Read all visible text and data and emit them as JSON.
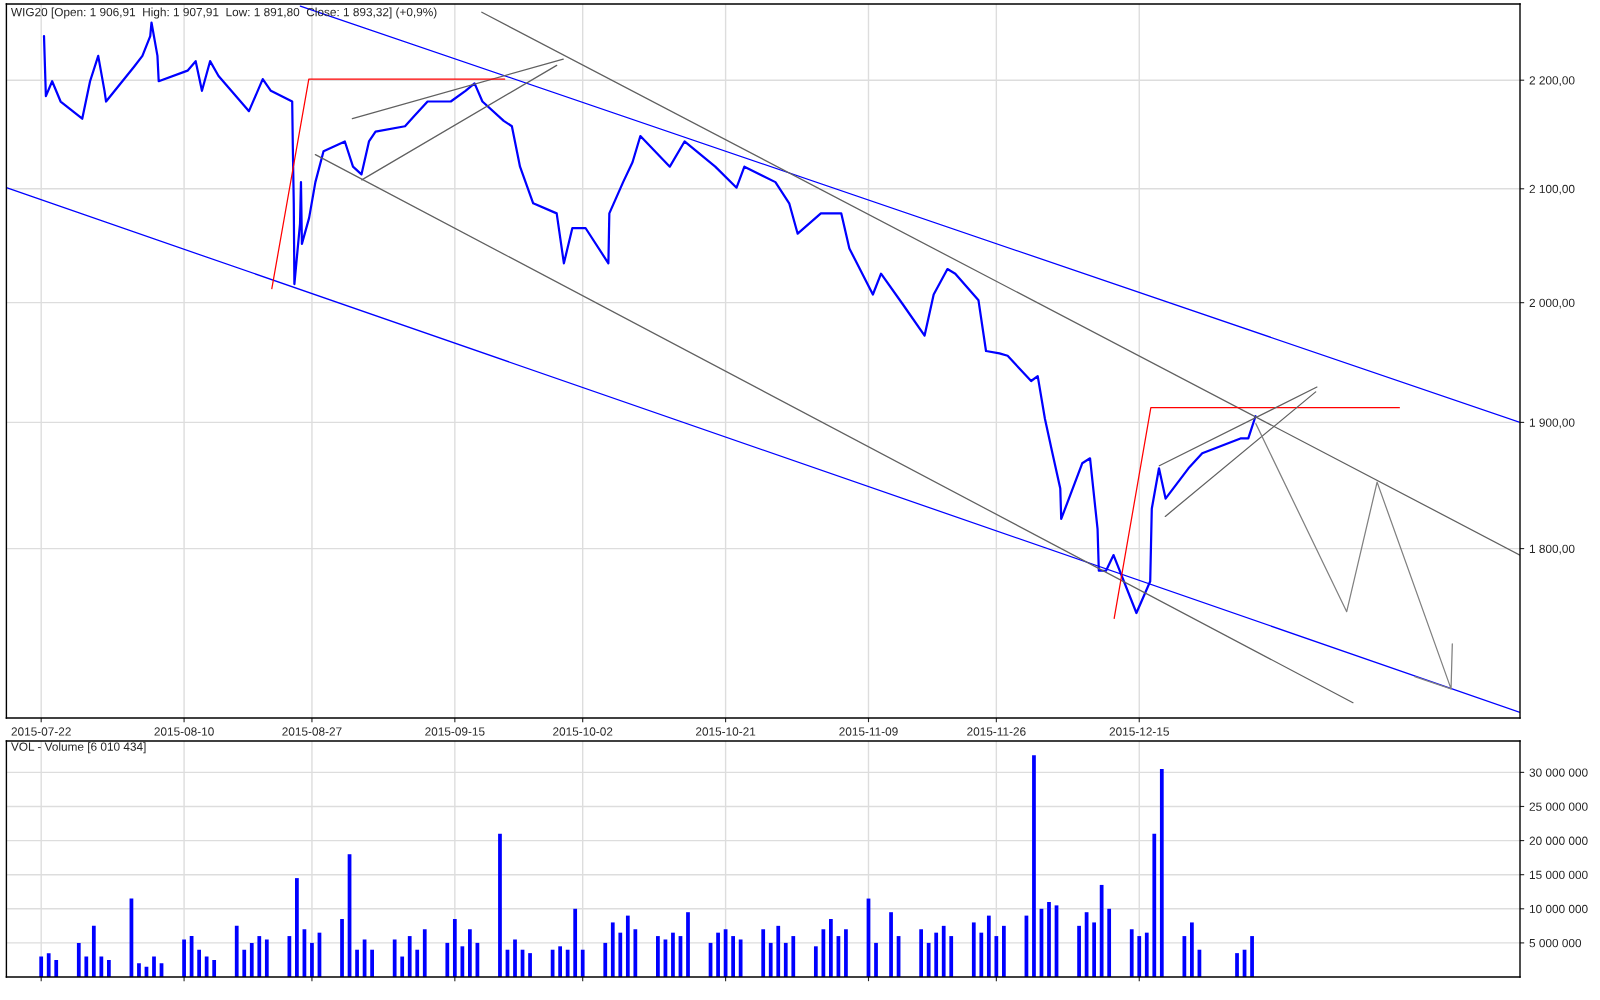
{
  "chart_data": [
    {
      "type": "line",
      "title": "WIG20 [Open: 1 906,91  High: 1 907,91  Low: 1 891,80  Close: 1 893,32] (+0,9%)",
      "log": "y",
      "grid": true,
      "xlim": [
        "2015-07-17T09:00",
        "2016-02-03T15:00"
      ],
      "ylim": [
        1674,
        2273
      ],
      "xticks": [
        "2015-07-22",
        "2015-08-10",
        "2015-08-27",
        "2015-09-15",
        "2015-10-02",
        "2015-10-21",
        "2015-11-09",
        "2015-11-26",
        "2015-12-15"
      ],
      "yticks": [
        {
          "value": 1800,
          "label": "1 800,00"
        },
        {
          "value": 1900,
          "label": "1 900,00"
        },
        {
          "value": 2000,
          "label": "2 000,00"
        },
        {
          "value": 2100,
          "label": "2 100,00"
        },
        {
          "value": 2200,
          "label": "2 200,00"
        }
      ],
      "series": [
        {
          "type": "line",
          "color": "#0000ff",
          "x": [
            "2015-07-22T09:00",
            "2015-07-22T15:00",
            "2015-07-23T11:00",
            "2015-07-24T14:00",
            "2015-07-27T11:00",
            "2015-07-28T12:00",
            "2015-07-29T14:00",
            "2015-07-30T10:00",
            "2015-07-30T15:00",
            "2015-08-03T09:00",
            "2015-08-04T11:00",
            "2015-08-05T12:00",
            "2015-08-05T16:00",
            "2015-08-06T11:00",
            "2015-08-06T15:00",
            "2015-08-10T11:00",
            "2015-08-11T13:00",
            "2015-08-12T09:00",
            "2015-08-13T11:00",
            "2015-08-14T14:00",
            "2015-08-18T09:00",
            "2015-08-18T15:00",
            "2015-08-20T11:00",
            "2015-08-21T13:00",
            "2015-08-24T09:00",
            "2015-08-24T11:00",
            "2015-08-24T14:00",
            "2015-08-24T16:00",
            "2015-08-25T10:00",
            "2015-08-25T13:00",
            "2015-08-25T16:00",
            "2015-08-26T15:00",
            "2015-08-27T11:00",
            "2015-08-28T13:00",
            "2015-08-31T09:00",
            "2015-09-01T11:00",
            "2015-09-02T14:00",
            "2015-09-03T14:00",
            "2015-09-04T11:00",
            "2015-09-08T09:00",
            "2015-09-09T13:00",
            "2015-09-11T09:00",
            "2015-09-14T11:00",
            "2015-09-16T10:00",
            "2015-09-17T15:00",
            "2015-09-18T16:00",
            "2015-09-21T12:00",
            "2015-09-22T14:00",
            "2015-09-23T16:00",
            "2015-09-25T10:00",
            "2015-09-28T13:00",
            "2015-09-29T12:00",
            "2015-09-30T15:00",
            "2015-10-02T09:00",
            "2015-10-05T10:00",
            "2015-10-05T13:00",
            "2015-10-07T09:00",
            "2015-10-08T15:00",
            "2015-10-09T16:00",
            "2015-10-13T14:00",
            "2015-10-15T13:00",
            "2015-10-19T15:00",
            "2015-10-22T11:00",
            "2015-10-23T12:00",
            "2015-10-27T15:00",
            "2015-10-29T11:00",
            "2015-10-30T14:00",
            "2015-11-02T16:00",
            "2015-11-05T09:00",
            "2015-11-06T11:00",
            "2015-11-09T14:00",
            "2015-11-10T16:00",
            "2015-11-13T15:00",
            "2015-11-16T11:00",
            "2015-11-17T16:00",
            "2015-11-19T12:00",
            "2015-11-20T13:00",
            "2015-11-23T15:00",
            "2015-11-24T15:00",
            "2015-11-26T10:00",
            "2015-11-27T12:00",
            "2015-11-30T15:00",
            "2015-12-01T12:00",
            "2015-12-02T11:00",
            "2015-12-03T11:00",
            "2015-12-04T12:00",
            "2015-12-04T15:00",
            "2015-12-07T10:00",
            "2015-12-08T11:00",
            "2015-12-09T11:00",
            "2015-12-09T15:00",
            "2015-12-10T14:00",
            "2015-12-11T14:00",
            "2015-12-14T15:00",
            "2015-12-16T11:00",
            "2015-12-16T16:00",
            "2015-12-17T15:00",
            "2015-12-18T12:00",
            "2015-12-21T13:00",
            "2015-12-23T09:00",
            "2015-12-28T11:00",
            "2015-12-29T12:00",
            "2015-12-30T11:00"
          ],
          "values": [
            2242,
            2185,
            2199,
            2180,
            2164,
            2199,
            2223,
            2190,
            2180,
            2213,
            2223,
            2242,
            2255,
            2223,
            2199,
            2209,
            2218,
            2190,
            2218,
            2204,
            2173,
            2171,
            2201,
            2190,
            2180,
            2138,
            2087,
            2016,
            2069,
            2106,
            2051,
            2074,
            2106,
            2134,
            2143,
            2120,
            2113,
            2143,
            2152,
            2157,
            2166,
            2180,
            2180,
            2190,
            2197,
            2180,
            2162,
            2157,
            2120,
            2087,
            2078,
            2034,
            2065,
            2065,
            2034,
            2078,
            2106,
            2124,
            2148,
            2120,
            2143,
            2120,
            2101,
            2120,
            2106,
            2087,
            2060,
            2078,
            2078,
            2047,
            2007,
            2025,
            1998,
            1972,
            2007,
            2029,
            2025,
            2002,
            1959,
            1957,
            1955,
            1934,
            1938,
            1903,
            1875,
            1847,
            1823,
            1867,
            1871,
            1815,
            1783,
            1783,
            1795,
            1751,
            1775,
            1831,
            1863,
            1839,
            1863,
            1875,
            1887,
            1887,
            1905
          ]
        },
        {
          "type": "line",
          "color": "#0000ff",
          "x": [
            "2015-08-25T11:00",
            "2016-02-03T15:00"
          ],
          "values": [
            2271,
            1900
          ]
        },
        {
          "type": "line",
          "color": "#0000ff",
          "x": [
            "2015-07-17T09:00",
            "2016-02-03T15:00"
          ],
          "values": [
            2101,
            1678
          ]
        },
        {
          "type": "line",
          "color": "#606060",
          "x": [
            "2015-09-18T14:00",
            "2016-02-03T15:00"
          ],
          "values": [
            2265,
            1795
          ]
        },
        {
          "type": "line",
          "color": "#606060",
          "x": [
            "2015-08-27T11:00",
            "2016-01-12T10:00"
          ],
          "values": [
            2131,
            1685
          ]
        },
        {
          "type": "line",
          "color": "#606060",
          "x": [
            "2015-09-01T09:00",
            "2015-09-29T10:00"
          ],
          "values": [
            2164,
            2220
          ]
        },
        {
          "type": "line",
          "color": "#606060",
          "x": [
            "2015-09-02T15:00",
            "2015-09-28T13:00"
          ],
          "values": [
            2108,
            2214
          ]
        },
        {
          "type": "line",
          "color": "#ff0000",
          "x": [
            "2015-08-21T16:00",
            "2015-08-26T14:00",
            "2015-09-21T15:00"
          ],
          "values": [
            2012,
            2201,
            2201
          ]
        },
        {
          "type": "line",
          "color": "#ff0000",
          "x": [
            "2015-12-11T16:00",
            "2015-12-16T13:00",
            "2016-01-18T14:00"
          ],
          "values": [
            1747,
            1912,
            1912
          ]
        },
        {
          "type": "line",
          "color": "#606060",
          "x": [
            "2015-12-17T16:00",
            "2016-01-07T15:00"
          ],
          "values": [
            1865,
            1929
          ]
        },
        {
          "type": "line",
          "color": "#606060",
          "x": [
            "2015-12-18T11:00",
            "2016-01-07T11:00"
          ],
          "values": [
            1825,
            1925
          ]
        },
        {
          "type": "line",
          "color": "#808080",
          "x": [
            "2015-12-30T12:00",
            "2016-01-11T14:00",
            "2016-01-15T15:00",
            "2016-01-25T11:00",
            "2016-01-25T15:00"
          ],
          "values": [
            1899,
            1752,
            1852,
            1695,
            1728
          ]
        },
        {
          "type": "line",
          "color": "#808080",
          "x": [
            "2016-01-20T15:00",
            "2016-01-25T11:00"
          ],
          "values": [
            1704,
            1695
          ]
        }
      ]
    },
    {
      "type": "bar",
      "title": "VOL - Volume [6 010 434]",
      "grid": true,
      "tick_labels": "y",
      "color": "#0000ff",
      "xlim": [
        "2015-07-17T09:00",
        "2016-02-03T15:00"
      ],
      "ylim": [
        0,
        34600000
      ],
      "xticks": [
        "2015-07-22",
        "2015-08-10",
        "2015-08-27",
        "2015-09-15",
        "2015-10-02",
        "2015-10-21",
        "2015-11-09",
        "2015-11-26",
        "2015-12-15"
      ],
      "yticks": [
        {
          "value": 5000000,
          "label": "5 000 000"
        },
        {
          "value": 10000000,
          "label": "10 000 000"
        },
        {
          "value": 15000000,
          "label": "15 000 000"
        },
        {
          "value": 20000000,
          "label": "20 000 000"
        },
        {
          "value": 25000000,
          "label": "25 000 000"
        },
        {
          "value": 30000000,
          "label": "30 000 000"
        }
      ],
      "x": [
        "2015-07-22",
        "2015-07-23",
        "2015-07-24",
        "2015-07-27",
        "2015-07-28",
        "2015-07-29",
        "2015-07-30",
        "2015-07-31",
        "2015-08-03",
        "2015-08-04",
        "2015-08-05",
        "2015-08-06",
        "2015-08-07",
        "2015-08-10",
        "2015-08-11",
        "2015-08-12",
        "2015-08-13",
        "2015-08-14",
        "2015-08-17",
        "2015-08-18",
        "2015-08-19",
        "2015-08-20",
        "2015-08-21",
        "2015-08-24",
        "2015-08-25",
        "2015-08-26",
        "2015-08-27",
        "2015-08-28",
        "2015-08-31",
        "2015-09-01",
        "2015-09-02",
        "2015-09-03",
        "2015-09-04",
        "2015-09-07",
        "2015-09-08",
        "2015-09-09",
        "2015-09-10",
        "2015-09-11",
        "2015-09-14",
        "2015-09-15",
        "2015-09-16",
        "2015-09-17",
        "2015-09-18",
        "2015-09-21",
        "2015-09-22",
        "2015-09-23",
        "2015-09-24",
        "2015-09-25",
        "2015-09-28",
        "2015-09-29",
        "2015-09-30",
        "2015-10-01",
        "2015-10-02",
        "2015-10-05",
        "2015-10-06",
        "2015-10-07",
        "2015-10-08",
        "2015-10-09",
        "2015-10-12",
        "2015-10-13",
        "2015-10-14",
        "2015-10-15",
        "2015-10-16",
        "2015-10-19",
        "2015-10-20",
        "2015-10-21",
        "2015-10-22",
        "2015-10-23",
        "2015-10-26",
        "2015-10-27",
        "2015-10-28",
        "2015-10-29",
        "2015-10-30",
        "2015-11-02",
        "2015-11-03",
        "2015-11-04",
        "2015-11-05",
        "2015-11-06",
        "2015-11-09",
        "2015-11-10",
        "2015-11-12",
        "2015-11-13",
        "2015-11-16",
        "2015-11-17",
        "2015-11-18",
        "2015-11-19",
        "2015-11-20",
        "2015-11-23",
        "2015-11-24",
        "2015-11-25",
        "2015-11-26",
        "2015-11-27",
        "2015-11-30",
        "2015-12-01",
        "2015-12-02",
        "2015-12-03",
        "2015-12-04",
        "2015-12-07",
        "2015-12-08",
        "2015-12-09",
        "2015-12-10",
        "2015-12-11",
        "2015-12-14",
        "2015-12-15",
        "2015-12-16",
        "2015-12-17",
        "2015-12-18",
        "2015-12-21",
        "2015-12-22",
        "2015-12-23",
        "2015-12-28",
        "2015-12-29",
        "2015-12-30"
      ],
      "values": [
        3000000,
        3500000,
        2500000,
        5000000,
        3000000,
        7500000,
        3000000,
        2500000,
        11500000,
        2000000,
        1500000,
        3000000,
        2000000,
        5500000,
        6000000,
        4000000,
        3000000,
        2500000,
        7500000,
        4000000,
        5000000,
        6000000,
        5500000,
        6000000,
        14500000,
        7000000,
        5000000,
        6500000,
        8500000,
        18000000,
        4000000,
        5500000,
        4000000,
        5500000,
        3000000,
        6000000,
        4000000,
        7000000,
        5000000,
        8500000,
        4500000,
        7000000,
        5000000,
        21000000,
        4000000,
        5500000,
        4000000,
        3500000,
        4000000,
        4500000,
        4000000,
        10000000,
        4000000,
        5000000,
        8000000,
        6500000,
        9000000,
        7000000,
        6000000,
        5500000,
        6500000,
        6000000,
        9500000,
        5000000,
        6500000,
        7000000,
        6000000,
        5500000,
        7000000,
        5000000,
        7500000,
        5000000,
        6000000,
        4500000,
        7000000,
        8500000,
        6000000,
        7000000,
        11500000,
        5000000,
        9500000,
        6000000,
        7000000,
        5000000,
        6500000,
        7500000,
        6000000,
        8000000,
        6500000,
        9000000,
        6000000,
        7500000,
        9000000,
        32500000,
        10000000,
        11000000,
        10500000,
        7500000,
        9500000,
        8000000,
        13500000,
        10000000,
        7000000,
        6000000,
        6500000,
        21000000,
        30500000,
        6000000,
        8000000,
        4000000,
        3500000,
        4000000,
        6000000
      ]
    }
  ]
}
